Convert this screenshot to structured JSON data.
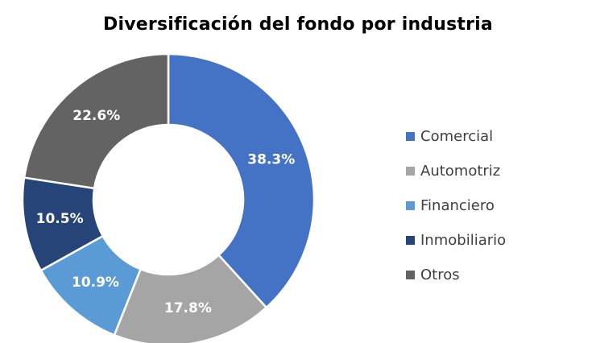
{
  "chart_data": {
    "type": "pie",
    "title": "Diversificación del fondo por industria",
    "legend_position": "right",
    "slices": [
      {
        "name": "Comercial",
        "value": 38.3,
        "label": "38.3%",
        "color": "#4472C4"
      },
      {
        "name": "Automotriz",
        "value": 17.8,
        "label": "17.8%",
        "color": "#A5A5A5"
      },
      {
        "name": "Financiero",
        "value": 10.9,
        "label": "10.9%",
        "color": "#5B9BD5"
      },
      {
        "name": "Inmobiliario",
        "value": 10.5,
        "label": "10.5%",
        "color": "#264478"
      },
      {
        "name": "Otros",
        "value": 22.6,
        "label": "22.6%",
        "color": "#636363"
      }
    ]
  }
}
